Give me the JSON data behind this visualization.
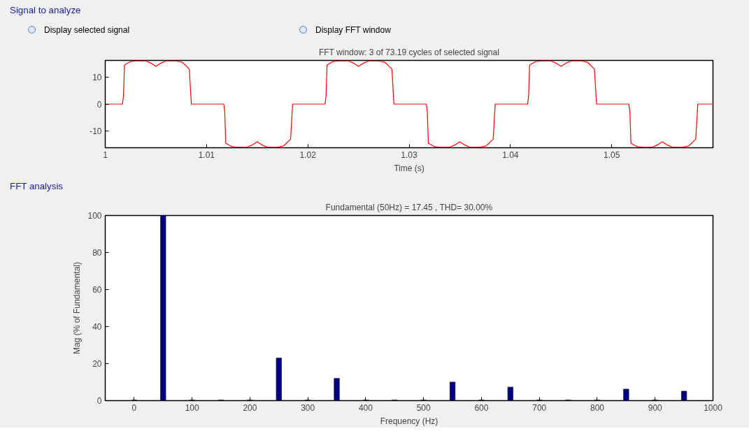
{
  "chart_data": [
    {
      "type": "line",
      "title": "FFT window: 3 of 73.19 cycles of selected signal",
      "xlabel": "Time (s)",
      "annotations": [
        "Signal to analyze",
        "Display selected signal",
        "Display FFT window"
      ],
      "x": [
        1.0,
        1.0017,
        1.0018,
        1.0019,
        1.0025,
        1.003,
        1.004,
        1.0045,
        1.005,
        1.0055,
        1.006,
        1.007,
        1.0076,
        1.0079,
        1.0083,
        1.0085,
        1.0117,
        1.0118,
        1.0119,
        1.0125,
        1.013,
        1.014,
        1.0145,
        1.015,
        1.0155,
        1.016,
        1.017,
        1.0176,
        1.0179,
        1.0183,
        1.0185,
        1.0217,
        1.0218,
        1.0219,
        1.0225,
        1.023,
        1.024,
        1.0245,
        1.025,
        1.0255,
        1.026,
        1.027,
        1.0276,
        1.0279,
        1.0283,
        1.0285,
        1.0317,
        1.0318,
        1.0319,
        1.0325,
        1.033,
        1.034,
        1.0345,
        1.035,
        1.0355,
        1.036,
        1.037,
        1.0376,
        1.0379,
        1.0383,
        1.0385,
        1.0417,
        1.0418,
        1.0419,
        1.0425,
        1.043,
        1.044,
        1.0445,
        1.045,
        1.0455,
        1.046,
        1.047,
        1.0476,
        1.0479,
        1.0483,
        1.0485,
        1.0517,
        1.0518,
        1.0519,
        1.0525,
        1.053,
        1.054,
        1.0545,
        1.055,
        1.0555,
        1.056,
        1.057,
        1.0576,
        1.0579,
        1.0583,
        1.0585,
        1.06
      ],
      "series": [
        {
          "color": "#ff0000",
          "values": [
            0,
            0,
            3,
            14.5,
            15.8,
            16,
            16,
            15.2,
            14,
            15.2,
            16,
            16,
            15.5,
            14.5,
            13,
            0,
            0,
            -3,
            -14.5,
            -15.8,
            -16,
            -16,
            -15.2,
            -14,
            -15.2,
            -16,
            -16,
            -15.5,
            -14.5,
            -13,
            0,
            0,
            3,
            14.5,
            15.8,
            16,
            16,
            15.2,
            14,
            15.2,
            16,
            16,
            15.5,
            14.5,
            13,
            0,
            0,
            -3,
            -14.5,
            -15.8,
            -16,
            -16,
            -15.2,
            -14,
            -15.2,
            -16,
            -16,
            -15.5,
            -14.5,
            -13,
            0,
            0,
            3,
            14.5,
            15.8,
            16,
            16,
            15.2,
            14,
            15.2,
            16,
            16,
            15.5,
            14.5,
            13,
            0,
            0,
            -3,
            -14.5,
            -15.8,
            -16,
            -16,
            -15.2,
            -14,
            -15.2,
            -16,
            -16,
            -15.5,
            -14.5,
            -13,
            0,
            0
          ]
        }
      ],
      "xlim": [
        1.0,
        1.06
      ],
      "ylim": [
        -16.2,
        16.2
      ],
      "xticks": [
        1,
        1.01,
        1.02,
        1.03,
        1.04,
        1.05
      ],
      "yticks": [
        -10,
        0,
        10
      ],
      "grid": false,
      "marker": "none",
      "line_style": "solid"
    },
    {
      "type": "bar",
      "title": "Fundamental (50Hz) = 17.45 , THD= 30.00%",
      "xlabel": "Frequency (Hz)",
      "ylabel": "Mag (% of Fundamental)",
      "annotations": [
        "FFT analysis"
      ],
      "x": [
        0,
        50,
        100,
        150,
        200,
        250,
        300,
        350,
        400,
        450,
        500,
        550,
        600,
        650,
        700,
        750,
        800,
        850,
        900,
        950
      ],
      "series": [
        {
          "color": "#000080",
          "values": [
            0.3,
            100,
            0.3,
            0.3,
            0.3,
            23,
            0.3,
            12,
            0.3,
            0.3,
            0.3,
            10,
            0.3,
            7.3,
            0.3,
            0.3,
            0.3,
            6.2,
            0.3,
            5.1
          ]
        }
      ],
      "xlim": [
        -50,
        1000
      ],
      "ylim": [
        0,
        100
      ],
      "xticks": [
        0,
        100,
        200,
        300,
        400,
        500,
        600,
        700,
        800,
        900,
        1000
      ],
      "yticks": [
        0,
        20,
        40,
        60,
        80,
        100
      ],
      "grid": false
    }
  ]
}
